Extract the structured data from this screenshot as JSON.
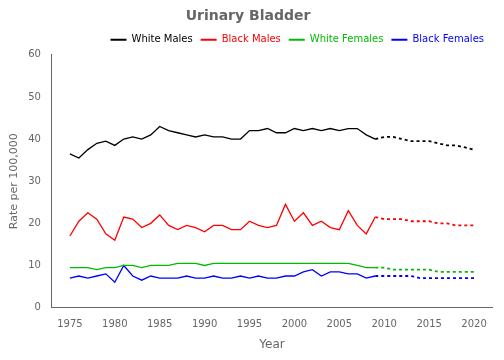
{
  "chart_data": {
    "type": "line",
    "title": "Urinary Bladder",
    "x_label": "Year",
    "y_label": "Rate per 100,000",
    "xlim": [
      1973,
      2022
    ],
    "ylim": [
      0,
      60
    ],
    "xticks": [
      1975,
      1980,
      1985,
      1990,
      1995,
      2000,
      2005,
      2010,
      2015,
      2020
    ],
    "yticks": [
      0,
      10,
      20,
      30,
      40,
      50,
      60
    ],
    "grid": false,
    "legend": "upper right",
    "series": [
      {
        "name": "White Males",
        "color": "#000000",
        "line_style": "solid",
        "x": [
          1975,
          1976,
          1977,
          1978,
          1979,
          1980,
          1981,
          1982,
          1983,
          1984,
          1985,
          1986,
          1987,
          1988,
          1989,
          1990,
          1991,
          1992,
          1993,
          1994,
          1995,
          1996,
          1997,
          1998,
          1999,
          2000,
          2001,
          2002,
          2003,
          2004,
          2005,
          2006,
          2007,
          2008,
          2009
        ],
        "values": [
          36.5,
          35.5,
          37.5,
          39.0,
          39.5,
          38.5,
          40.0,
          40.5,
          40.0,
          41.0,
          43.0,
          42.0,
          41.5,
          41.0,
          40.5,
          41.0,
          40.5,
          40.5,
          40.0,
          40.0,
          42.0,
          42.0,
          42.5,
          41.5,
          41.5,
          42.5,
          42.0,
          42.5,
          42.0,
          42.5,
          42.0,
          42.5,
          42.5,
          41.0,
          40.0
        ]
      },
      {
        "name": "Black Males",
        "color": "#ff0000",
        "line_style": "solid",
        "x": [
          1975,
          1976,
          1977,
          1978,
          1979,
          1980,
          1981,
          1982,
          1983,
          1984,
          1985,
          1986,
          1987,
          1988,
          1989,
          1990,
          1991,
          1992,
          1993,
          1994,
          1995,
          1996,
          1997,
          1998,
          1999,
          2000,
          2001,
          2002,
          2003,
          2004,
          2005,
          2006,
          2007,
          2008,
          2009
        ],
        "values": [
          17.0,
          20.5,
          22.5,
          21.0,
          17.5,
          16.0,
          21.5,
          21.0,
          19.0,
          20.0,
          22.0,
          19.5,
          18.5,
          19.5,
          19.0,
          18.0,
          19.5,
          19.5,
          18.5,
          18.5,
          20.5,
          19.5,
          19.0,
          19.5,
          24.5,
          20.5,
          22.5,
          19.5,
          20.5,
          19.0,
          18.5,
          23.0,
          19.5,
          17.5,
          21.5
        ]
      },
      {
        "name": "White Females",
        "color": "#00bb00",
        "line_style": "solid",
        "x": [
          1975,
          1976,
          1977,
          1978,
          1979,
          1980,
          1981,
          1982,
          1983,
          1984,
          1985,
          1986,
          1987,
          1988,
          1989,
          1990,
          1991,
          1992,
          1993,
          1994,
          1995,
          1996,
          1997,
          1998,
          1999,
          2000,
          2001,
          2002,
          2003,
          2004,
          2005,
          2006,
          2007,
          2008,
          2009
        ],
        "values": [
          9.5,
          9.5,
          9.5,
          9.0,
          9.5,
          9.5,
          10.0,
          10.0,
          9.5,
          10.0,
          10.0,
          10.0,
          10.5,
          10.5,
          10.5,
          10.0,
          10.5,
          10.5,
          10.5,
          10.5,
          10.5,
          10.5,
          10.5,
          10.5,
          10.5,
          10.5,
          10.5,
          10.5,
          10.5,
          10.5,
          10.5,
          10.5,
          10.0,
          9.5,
          9.5
        ]
      },
      {
        "name": "Black Females",
        "color": "#0000ff",
        "line_style": "solid",
        "x": [
          1975,
          1976,
          1977,
          1978,
          1979,
          1980,
          1981,
          1982,
          1983,
          1984,
          1985,
          1986,
          1987,
          1988,
          1989,
          1990,
          1991,
          1992,
          1993,
          1994,
          1995,
          1996,
          1997,
          1998,
          1999,
          2000,
          2001,
          2002,
          2003,
          2004,
          2005,
          2006,
          2007,
          2008,
          2009
        ],
        "values": [
          7.0,
          7.5,
          7.0,
          7.5,
          8.0,
          6.0,
          10.0,
          7.5,
          6.5,
          7.5,
          7.0,
          7.0,
          7.0,
          7.5,
          7.0,
          7.0,
          7.5,
          7.0,
          7.0,
          7.5,
          7.0,
          7.5,
          7.0,
          7.0,
          7.5,
          7.5,
          8.5,
          9.0,
          7.5,
          8.5,
          8.5,
          8.0,
          8.0,
          7.0,
          7.5
        ]
      },
      {
        "name": "White Males",
        "color": "#000000",
        "line_style": "dotted",
        "x": [
          2009,
          2010,
          2011,
          2012,
          2013,
          2014,
          2015,
          2016,
          2017,
          2018,
          2019,
          2020
        ],
        "values": [
          40.0,
          40.5,
          40.5,
          40.0,
          39.5,
          39.5,
          39.5,
          39.0,
          38.5,
          38.5,
          38.0,
          37.5
        ]
      },
      {
        "name": "Black Males",
        "color": "#ff0000",
        "line_style": "dotted",
        "x": [
          2009,
          2010,
          2011,
          2012,
          2013,
          2014,
          2015,
          2016,
          2017,
          2018,
          2019,
          2020
        ],
        "values": [
          21.5,
          21.0,
          21.0,
          21.0,
          20.5,
          20.5,
          20.5,
          20.0,
          20.0,
          19.5,
          19.5,
          19.5
        ]
      },
      {
        "name": "White Females",
        "color": "#00bb00",
        "line_style": "dotted",
        "x": [
          2009,
          2010,
          2011,
          2012,
          2013,
          2014,
          2015,
          2016,
          2017,
          2018,
          2019,
          2020
        ],
        "values": [
          9.5,
          9.5,
          9.0,
          9.0,
          9.0,
          9.0,
          9.0,
          8.5,
          8.5,
          8.5,
          8.5,
          8.5
        ]
      },
      {
        "name": "Black Females",
        "color": "#0000ff",
        "line_style": "dotted",
        "x": [
          2009,
          2010,
          2011,
          2012,
          2013,
          2014,
          2015,
          2016,
          2017,
          2018,
          2019,
          2020
        ],
        "values": [
          7.5,
          7.5,
          7.5,
          7.5,
          7.5,
          7.0,
          7.0,
          7.0,
          7.0,
          7.0,
          7.0,
          7.0
        ]
      }
    ]
  }
}
